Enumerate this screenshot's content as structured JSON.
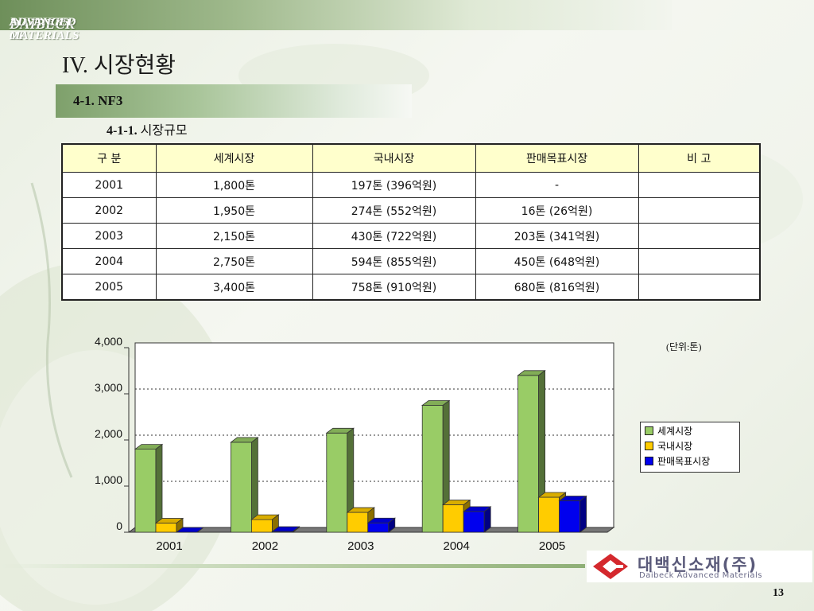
{
  "header": {
    "banner_prefix": "BUSINESS OF",
    "banner_brand": "DAIBECK",
    "banner_suffix": "ADVANCED MATERIALS"
  },
  "page_title": "IV. 시장현황",
  "section": "4-1. NF3",
  "subsection": {
    "number": "4-1-1.",
    "label": "시장규모"
  },
  "table": {
    "headers": [
      "구  분",
      "세계시장",
      "국내시장",
      "판매목표시장",
      "비    고"
    ],
    "rows": [
      [
        "2001",
        "1,800톤",
        "197톤 (396억원)",
        "-",
        ""
      ],
      [
        "2002",
        "1,950톤",
        "274톤 (552억원)",
        "16톤  (26억원)",
        ""
      ],
      [
        "2003",
        "2,150톤",
        "430톤 (722억원)",
        "203톤 (341억원)",
        ""
      ],
      [
        "2004",
        "2,750톤",
        "594톤 (855억원)",
        "450톤 (648억원)",
        ""
      ],
      [
        "2005",
        "3,400톤",
        "758톤 (910억원)",
        "680톤 (816억원)",
        ""
      ]
    ]
  },
  "chart_data": {
    "type": "bar",
    "categories": [
      "2001",
      "2002",
      "2003",
      "2004",
      "2005"
    ],
    "series": [
      {
        "name": "세계시장",
        "values": [
          1800,
          1950,
          2150,
          2750,
          3400
        ],
        "color": "#99cc66"
      },
      {
        "name": "국내시장",
        "values": [
          197,
          274,
          430,
          594,
          758
        ],
        "color": "#ffcc00"
      },
      {
        "name": "판매목표시장",
        "values": [
          0,
          16,
          203,
          450,
          680
        ],
        "color": "#0000ee"
      }
    ],
    "ylim": [
      0,
      4000
    ],
    "yticks": [
      "0",
      "1,000",
      "2,000",
      "3,000",
      "4,000"
    ],
    "unit_label": "(단위:톤)",
    "grid": "dotted horizontal",
    "legend_position": "right",
    "style": "3d"
  },
  "logo": {
    "name_ko": "대백신소재(주)",
    "name_en": "Daibeck Advanced Materials",
    "accent_color": "#d4282d"
  },
  "page_number": "13"
}
